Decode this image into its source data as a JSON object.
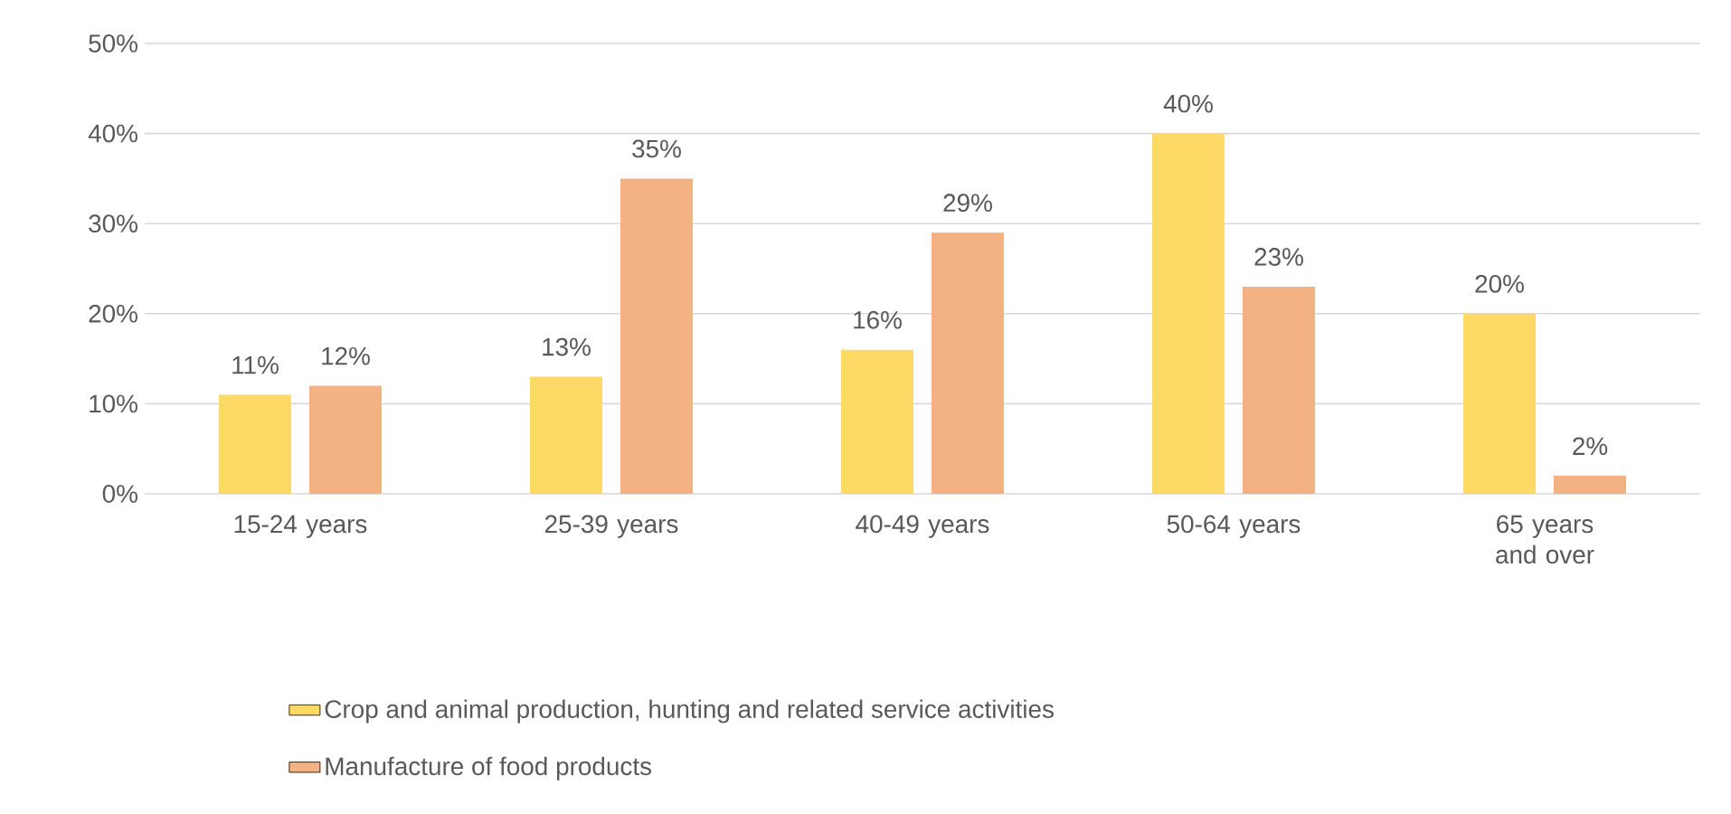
{
  "chart_data": {
    "type": "bar",
    "categories": [
      "15-24 years",
      "25-39 years",
      "40-49 years",
      "50-64 years",
      "65 years and over"
    ],
    "series": [
      {
        "name": "Crop and animal production, hunting and related service activities",
        "color": "#ffd966",
        "values": [
          11,
          13,
          16,
          40,
          20
        ],
        "value_labels": [
          "11%",
          "13%",
          "16%",
          "40%",
          "20%"
        ]
      },
      {
        "name": "Manufacture of food products",
        "color": "#f4b183",
        "values": [
          12,
          35,
          29,
          23,
          2
        ],
        "value_labels": [
          "12%",
          "35%",
          "29%",
          "23%",
          "2%"
        ]
      }
    ],
    "ylim": [
      0,
      50
    ],
    "yticks": [
      {
        "value": 0,
        "label": "0%"
      },
      {
        "value": 10,
        "label": "10%"
      },
      {
        "value": 20,
        "label": "20%"
      },
      {
        "value": 30,
        "label": "30%"
      },
      {
        "value": 40,
        "label": "40%"
      },
      {
        "value": 50,
        "label": "50%"
      }
    ],
    "grid": "y",
    "legend": "bottom"
  }
}
